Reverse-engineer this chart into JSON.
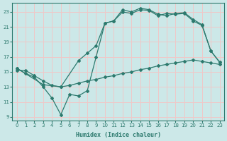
{
  "xlabel": "Humidex (Indice chaleur)",
  "bg_color": "#cce8e8",
  "grid_color": "#f0c8c8",
  "line_color": "#2d7a6e",
  "xlim": [
    -0.5,
    23.5
  ],
  "ylim": [
    8.5,
    24.2
  ],
  "yticks": [
    9,
    11,
    13,
    15,
    17,
    19,
    21,
    23
  ],
  "xticks": [
    0,
    1,
    2,
    3,
    4,
    5,
    6,
    7,
    8,
    9,
    10,
    11,
    12,
    13,
    14,
    15,
    16,
    17,
    18,
    19,
    20,
    21,
    22,
    23
  ],
  "line1_x": [
    0,
    1,
    2,
    3,
    4,
    5,
    6,
    7,
    8,
    9,
    10,
    11,
    12,
    13,
    14,
    15,
    16,
    17,
    18,
    19,
    20,
    21,
    22,
    23
  ],
  "line1_y": [
    15.5,
    14.8,
    14.3,
    13.0,
    11.5,
    9.3,
    12.0,
    11.8,
    12.5,
    17.0,
    21.5,
    21.8,
    23.3,
    23.0,
    23.5,
    23.3,
    22.7,
    22.5,
    22.8,
    22.9,
    22.0,
    21.3,
    17.8,
    16.3
  ],
  "line2_x": [
    0,
    3,
    5,
    7,
    8,
    9,
    10,
    11,
    12,
    13,
    14,
    15,
    16,
    17,
    18,
    19,
    20,
    21,
    22,
    23
  ],
  "line2_y": [
    15.5,
    13.3,
    13.0,
    16.5,
    17.5,
    18.5,
    21.5,
    21.8,
    23.0,
    22.8,
    23.3,
    23.2,
    22.5,
    22.8,
    22.7,
    22.8,
    21.8,
    21.2,
    17.8,
    16.3
  ],
  "line3_x": [
    0,
    1,
    2,
    3,
    4,
    5,
    6,
    7,
    8,
    9,
    10,
    11,
    12,
    13,
    14,
    15,
    16,
    17,
    18,
    19,
    20,
    21,
    22,
    23
  ],
  "line3_y": [
    15.2,
    15.2,
    14.5,
    13.8,
    13.2,
    13.0,
    13.2,
    13.5,
    13.8,
    14.0,
    14.3,
    14.5,
    14.8,
    15.0,
    15.3,
    15.5,
    15.8,
    16.0,
    16.2,
    16.4,
    16.6,
    16.4,
    16.2,
    16.0
  ]
}
